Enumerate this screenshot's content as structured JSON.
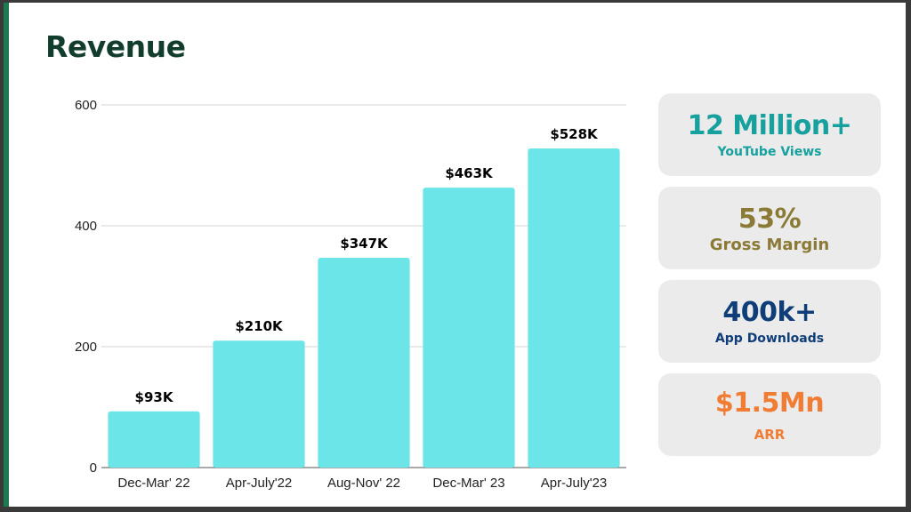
{
  "title": "Revenue",
  "chart_data": {
    "type": "bar",
    "title": "Revenue",
    "xlabel": "",
    "ylabel": "",
    "categories": [
      "Dec-Mar' 22",
      "Apr-July'22",
      "Aug-Nov' 22",
      "Dec-Mar' 23",
      "Apr-July'23"
    ],
    "values": [
      93,
      210,
      347,
      463,
      528
    ],
    "data_labels": [
      "$93K",
      "$210K",
      "$347K",
      "$463K",
      "$528K"
    ],
    "ylim": [
      0,
      600
    ],
    "yticks": [
      0,
      200,
      400,
      600
    ],
    "grid": true,
    "bar_color": "#6ce5e8"
  },
  "stats": [
    {
      "value": "12 Million+",
      "label": "YouTube Views",
      "color": "#16a09e"
    },
    {
      "value": "53%",
      "label": "Gross Margin",
      "color": "#8a7a35"
    },
    {
      "value": "400k+",
      "label": "App Downloads",
      "color": "#0f3d78"
    },
    {
      "value": "$1.5Mn",
      "label": "ARR",
      "color": "#f07d33"
    }
  ]
}
